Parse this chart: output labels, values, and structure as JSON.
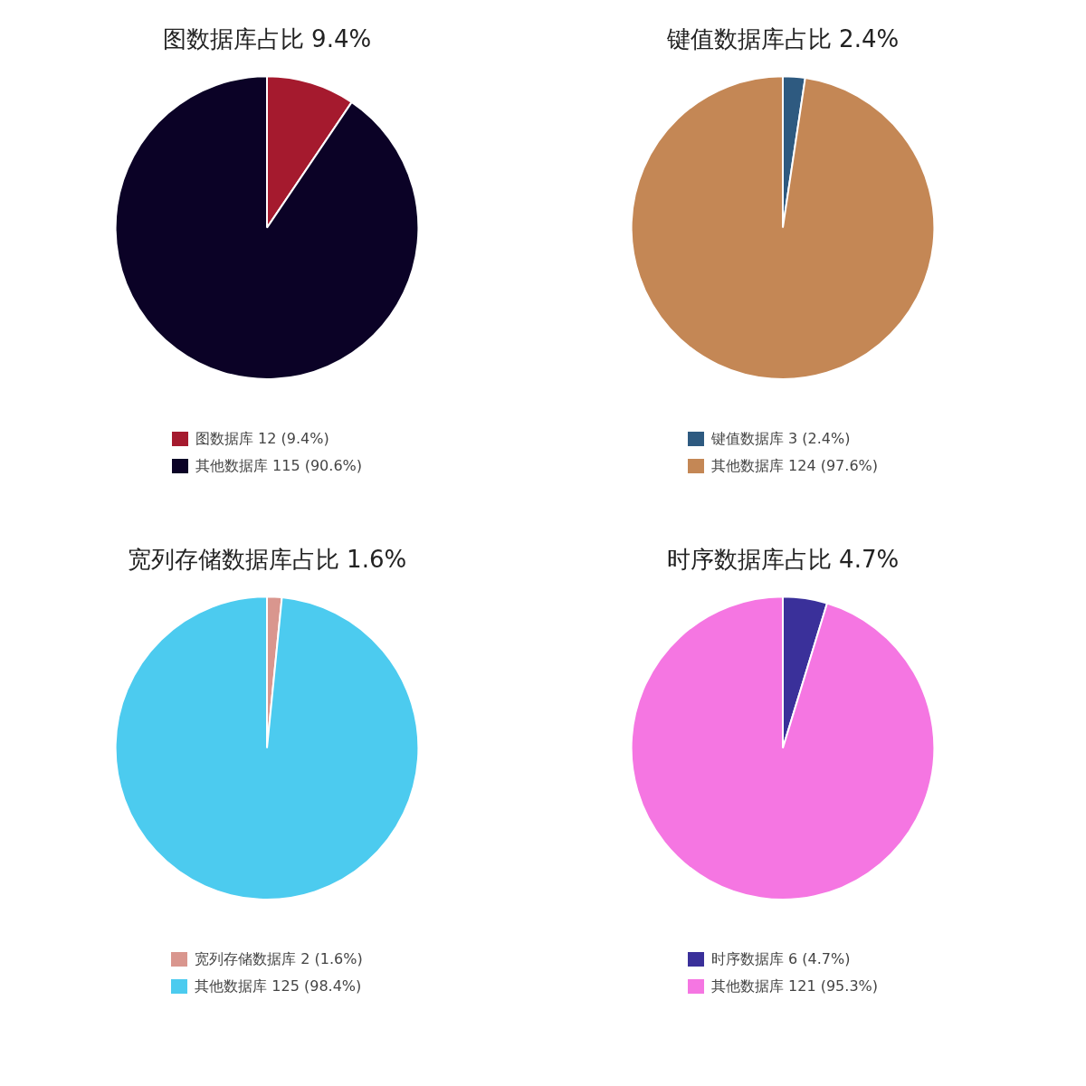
{
  "chart_data": [
    {
      "type": "pie",
      "title": "图数据库占比 9.4%",
      "categories": [
        "图数据库 12 (9.4%)",
        "其他数据库 115 (90.6%)"
      ],
      "values": [
        12,
        115
      ],
      "colors": [
        "#a51a2e",
        "#0b0226"
      ],
      "legend": "bottom"
    },
    {
      "type": "pie",
      "title": "键值数据库占比 2.4%",
      "categories": [
        "键值数据库 3 (2.4%)",
        "其他数据库 124 (97.6%)"
      ],
      "values": [
        3,
        124
      ],
      "colors": [
        "#2e5a80",
        "#c48755"
      ],
      "legend": "bottom"
    },
    {
      "type": "pie",
      "title": "宽列存储数据库占比 1.6%",
      "categories": [
        "宽列存储数据库 2 (1.6%)",
        "其他数据库 125 (98.4%)"
      ],
      "values": [
        2,
        125
      ],
      "colors": [
        "#d9968e",
        "#4ccbef"
      ],
      "legend": "bottom"
    },
    {
      "type": "pie",
      "title": "时序数据库占比 4.7%",
      "categories": [
        "时序数据库 6 (4.7%)",
        "其他数据库 121 (95.3%)"
      ],
      "values": [
        6,
        121
      ],
      "colors": [
        "#3a309a",
        "#f576e2"
      ],
      "legend": "bottom"
    }
  ]
}
